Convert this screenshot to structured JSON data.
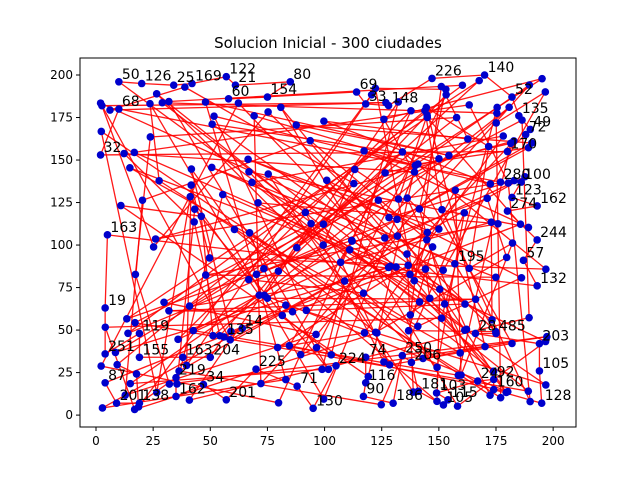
{
  "chart_data": {
    "type": "scatter",
    "title": "Solucion Inicial - 300 ciudades",
    "xlabel": "",
    "ylabel": "",
    "xlim": [
      -7,
      210
    ],
    "ylim": [
      -7,
      210
    ],
    "xticks": [
      0,
      25,
      50,
      75,
      100,
      125,
      150,
      175,
      200
    ],
    "yticks": [
      0,
      25,
      50,
      75,
      100,
      125,
      150,
      175,
      200
    ],
    "grid": false,
    "legend": "none",
    "point_color": "#0000cc",
    "route_color": "#ff0000",
    "visible_city_labels": [
      {
        "label": "50",
        "x": 10,
        "y": 196
      },
      {
        "label": "126",
        "x": 20,
        "y": 195
      },
      {
        "label": "25",
        "x": 34,
        "y": 194
      },
      {
        "label": "169",
        "x": 42,
        "y": 195
      },
      {
        "label": "122",
        "x": 57,
        "y": 199
      },
      {
        "label": "21",
        "x": 61,
        "y": 194
      },
      {
        "label": "80",
        "x": 85,
        "y": 196
      },
      {
        "label": "154",
        "x": 75,
        "y": 187
      },
      {
        "label": "60",
        "x": 58,
        "y": 186
      },
      {
        "label": "69",
        "x": 114,
        "y": 190
      },
      {
        "label": "33",
        "x": 118,
        "y": 183
      },
      {
        "label": "148",
        "x": 128,
        "y": 182
      },
      {
        "label": "226",
        "x": 147,
        "y": 198
      },
      {
        "label": "140",
        "x": 170,
        "y": 200
      },
      {
        "label": "52",
        "x": 182,
        "y": 187
      },
      {
        "label": "135",
        "x": 185,
        "y": 176
      },
      {
        "label": "49",
        "x": 190,
        "y": 168
      },
      {
        "label": "72",
        "x": 188,
        "y": 165
      },
      {
        "label": "170",
        "x": 180,
        "y": 155
      },
      {
        "label": "32",
        "x": 2,
        "y": 153
      },
      {
        "label": "68",
        "x": 10,
        "y": 180
      },
      {
        "label": "280",
        "x": 177,
        "y": 137
      },
      {
        "label": "100",
        "x": 186,
        "y": 137
      },
      {
        "label": "123",
        "x": 182,
        "y": 128
      },
      {
        "label": "162",
        "x": 193,
        "y": 123
      },
      {
        "label": "274",
        "x": 180,
        "y": 120
      },
      {
        "label": "244",
        "x": 193,
        "y": 103
      },
      {
        "label": "57",
        "x": 187,
        "y": 91
      },
      {
        "label": "132",
        "x": 193,
        "y": 76
      },
      {
        "label": "163",
        "x": 5,
        "y": 106
      },
      {
        "label": "19",
        "x": 4,
        "y": 63
      },
      {
        "label": "251",
        "x": 4,
        "y": 36
      },
      {
        "label": "119",
        "x": 19,
        "y": 48
      },
      {
        "label": "155",
        "x": 19,
        "y": 34
      },
      {
        "label": "163",
        "x": 38,
        "y": 34
      },
      {
        "label": "204",
        "x": 50,
        "y": 34
      },
      {
        "label": "135",
        "x": 56,
        "y": 46
      },
      {
        "label": "14",
        "x": 64,
        "y": 51
      },
      {
        "label": "87",
        "x": 4,
        "y": 19
      },
      {
        "label": "201",
        "x": 9,
        "y": 7
      },
      {
        "label": "138",
        "x": 19,
        "y": 7
      },
      {
        "label": "219",
        "x": 35,
        "y": 22
      },
      {
        "label": "162",
        "x": 35,
        "y": 11
      },
      {
        "label": "34",
        "x": 47,
        "y": 18
      },
      {
        "label": "201",
        "x": 57,
        "y": 9
      },
      {
        "label": "225",
        "x": 70,
        "y": 27
      },
      {
        "label": "71",
        "x": 88,
        "y": 17
      },
      {
        "label": "130",
        "x": 95,
        "y": 4
      },
      {
        "label": "224",
        "x": 105,
        "y": 29
      },
      {
        "label": "74",
        "x": 118,
        "y": 34
      },
      {
        "label": "116",
        "x": 118,
        "y": 19
      },
      {
        "label": "90",
        "x": 117,
        "y": 11
      },
      {
        "label": "186",
        "x": 130,
        "y": 7
      },
      {
        "label": "250",
        "x": 134,
        "y": 35
      },
      {
        "label": "206",
        "x": 138,
        "y": 31
      },
      {
        "label": "181",
        "x": 141,
        "y": 14
      },
      {
        "label": "105",
        "x": 152,
        "y": 6
      },
      {
        "label": "115",
        "x": 154,
        "y": 9
      },
      {
        "label": "103",
        "x": 149,
        "y": 13
      },
      {
        "label": "24",
        "x": 167,
        "y": 20
      },
      {
        "label": "92",
        "x": 174,
        "y": 21
      },
      {
        "label": "160",
        "x": 174,
        "y": 15
      },
      {
        "label": "128",
        "x": 195,
        "y": 7
      },
      {
        "label": "105",
        "x": 194,
        "y": 26
      },
      {
        "label": "203",
        "x": 194,
        "y": 42
      },
      {
        "label": "28",
        "x": 166,
        "y": 48
      },
      {
        "label": "485",
        "x": 175,
        "y": 48
      },
      {
        "label": "195",
        "x": 157,
        "y": 89
      }
    ]
  }
}
